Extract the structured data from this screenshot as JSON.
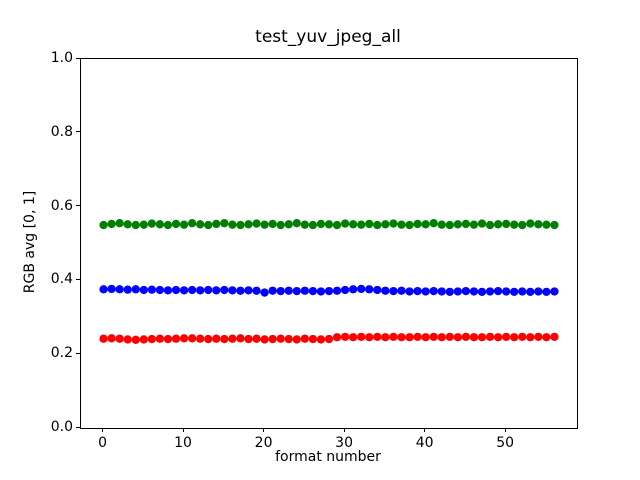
{
  "chart_data": {
    "type": "scatter",
    "title": "test_yuv_jpeg_all",
    "xlabel": "format number",
    "ylabel": "RGB avg [0, 1]",
    "xlim": [
      -2.8,
      58.8
    ],
    "ylim": [
      0.0,
      1.0
    ],
    "xticks": [
      0,
      10,
      20,
      30,
      40,
      50
    ],
    "xtick_labels": [
      "0",
      "10",
      "20",
      "30",
      "40",
      "50"
    ],
    "yticks": [
      0.0,
      0.2,
      0.4,
      0.6,
      0.8,
      1.0
    ],
    "ytick_labels": [
      "0.0",
      "0.2",
      "0.4",
      "0.6",
      "0.8",
      "1.0"
    ],
    "grid": false,
    "legend": "none",
    "marker": "o",
    "marker_radius_px": 4.15,
    "background_color": "#ffffff",
    "text_color": "#000000",
    "x": [
      0,
      1,
      2,
      3,
      4,
      5,
      6,
      7,
      8,
      9,
      10,
      11,
      12,
      13,
      14,
      15,
      16,
      17,
      18,
      19,
      20,
      21,
      22,
      23,
      24,
      25,
      26,
      27,
      28,
      29,
      30,
      31,
      32,
      33,
      34,
      35,
      36,
      37,
      38,
      39,
      40,
      41,
      42,
      43,
      44,
      45,
      46,
      47,
      48,
      49,
      50,
      51,
      52,
      53,
      54,
      55,
      56
    ],
    "series": [
      {
        "name": "green",
        "color": "#008000",
        "values": [
          0.55,
          0.553,
          0.555,
          0.552,
          0.55,
          0.551,
          0.554,
          0.552,
          0.55,
          0.553,
          0.551,
          0.555,
          0.552,
          0.55,
          0.553,
          0.555,
          0.551,
          0.55,
          0.552,
          0.554,
          0.551,
          0.553,
          0.55,
          0.552,
          0.555,
          0.551,
          0.55,
          0.553,
          0.552,
          0.55,
          0.554,
          0.552,
          0.551,
          0.553,
          0.55,
          0.552,
          0.554,
          0.551,
          0.55,
          0.553,
          0.552,
          0.555,
          0.551,
          0.55,
          0.552,
          0.553,
          0.551,
          0.554,
          0.55,
          0.552,
          0.553,
          0.551,
          0.55,
          0.554,
          0.552,
          0.551,
          0.55
        ]
      },
      {
        "name": "blue",
        "color": "#0000ff",
        "values": [
          0.376,
          0.377,
          0.376,
          0.375,
          0.376,
          0.374,
          0.375,
          0.374,
          0.373,
          0.374,
          0.373,
          0.374,
          0.373,
          0.374,
          0.373,
          0.374,
          0.373,
          0.372,
          0.373,
          0.372,
          0.367,
          0.372,
          0.371,
          0.372,
          0.371,
          0.372,
          0.371,
          0.37,
          0.371,
          0.372,
          0.374,
          0.376,
          0.377,
          0.376,
          0.374,
          0.372,
          0.371,
          0.372,
          0.37,
          0.371,
          0.37,
          0.371,
          0.37,
          0.369,
          0.37,
          0.371,
          0.37,
          0.369,
          0.37,
          0.371,
          0.37,
          0.369,
          0.37,
          0.369,
          0.37,
          0.369,
          0.37
        ]
      },
      {
        "name": "red",
        "color": "#ff0000",
        "values": [
          0.242,
          0.243,
          0.242,
          0.24,
          0.239,
          0.24,
          0.241,
          0.242,
          0.241,
          0.242,
          0.243,
          0.243,
          0.242,
          0.241,
          0.242,
          0.241,
          0.242,
          0.243,
          0.241,
          0.242,
          0.24,
          0.241,
          0.242,
          0.241,
          0.24,
          0.242,
          0.241,
          0.24,
          0.241,
          0.246,
          0.247,
          0.246,
          0.247,
          0.246,
          0.247,
          0.246,
          0.247,
          0.246,
          0.246,
          0.247,
          0.246,
          0.247,
          0.246,
          0.247,
          0.246,
          0.247,
          0.246,
          0.246,
          0.247,
          0.246,
          0.247,
          0.246,
          0.247,
          0.246,
          0.247,
          0.246,
          0.247
        ]
      }
    ]
  }
}
